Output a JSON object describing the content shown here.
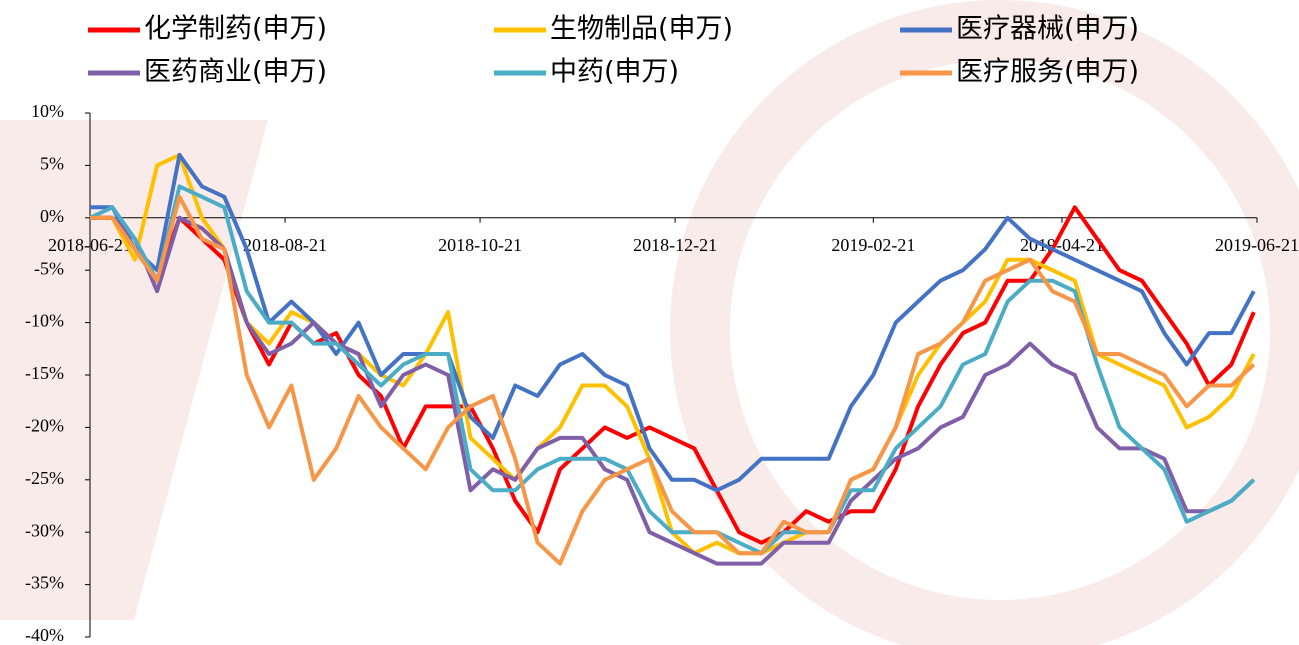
{
  "chart_data": {
    "type": "line",
    "x": [
      "2018-06-21",
      "2018-06-28",
      "2018-07-05",
      "2018-07-12",
      "2018-07-19",
      "2018-07-26",
      "2018-08-02",
      "2018-08-09",
      "2018-08-16",
      "2018-08-23",
      "2018-08-30",
      "2018-09-06",
      "2018-09-13",
      "2018-09-20",
      "2018-09-27",
      "2018-10-04",
      "2018-10-11",
      "2018-10-18",
      "2018-10-25",
      "2018-11-01",
      "2018-11-08",
      "2018-11-15",
      "2018-11-22",
      "2018-11-29",
      "2018-12-06",
      "2018-12-13",
      "2018-12-20",
      "2018-12-27",
      "2019-01-03",
      "2019-01-10",
      "2019-01-17",
      "2019-01-24",
      "2019-01-31",
      "2019-02-07",
      "2019-02-14",
      "2019-02-21",
      "2019-02-28",
      "2019-03-07",
      "2019-03-14",
      "2019-03-21",
      "2019-03-28",
      "2019-04-04",
      "2019-04-11",
      "2019-04-18",
      "2019-04-25",
      "2019-05-02",
      "2019-05-09",
      "2019-05-16",
      "2019-05-23",
      "2019-05-30",
      "2019-06-06",
      "2019-06-13",
      "2019-06-20"
    ],
    "series": [
      {
        "name": "化学制药(申万)",
        "color": "#ff0000",
        "values": [
          0,
          0,
          -3,
          -6,
          0,
          -2,
          -4,
          -10,
          -14,
          -10,
          -12,
          -11,
          -15,
          -17,
          -22,
          -18,
          -18,
          -18,
          -22,
          -27,
          -30,
          -24,
          -22,
          -20,
          -21,
          -20,
          -21,
          -22,
          -26,
          -30,
          -31,
          -30,
          -28,
          -29,
          -28,
          -28,
          -24,
          -18,
          -14,
          -11,
          -10,
          -6,
          -6,
          -3,
          1,
          -2,
          -5,
          -6,
          -9,
          -12,
          -16,
          -14,
          -9
        ]
      },
      {
        "name": "生物制品(申万)",
        "color": "#ffc000",
        "values": [
          0,
          0,
          -4,
          5,
          6,
          0,
          -3,
          -10,
          -12,
          -9,
          -10,
          -12,
          -13,
          -15,
          -16,
          -13,
          -9,
          -21,
          -23,
          -25,
          -22,
          -20,
          -16,
          -16,
          -18,
          -23,
          -30,
          -32,
          -31,
          -32,
          -32,
          -31,
          -30,
          -30,
          -25,
          -24,
          -20,
          -15,
          -12,
          -10,
          -8,
          -4,
          -4,
          -5,
          -6,
          -13,
          -14,
          -15,
          -16,
          -20,
          -19,
          -17,
          -13
        ]
      },
      {
        "name": "医疗器械(申万)",
        "color": "#4472c4",
        "values": [
          1,
          1,
          -3,
          -5,
          6,
          3,
          2,
          -3,
          -10,
          -8,
          -10,
          -13,
          -10,
          -15,
          -13,
          -13,
          -13,
          -19,
          -21,
          -16,
          -17,
          -14,
          -13,
          -15,
          -16,
          -22,
          -25,
          -25,
          -26,
          -25,
          -23,
          -23,
          -23,
          -23,
          -18,
          -15,
          -10,
          -8,
          -6,
          -5,
          -3,
          0,
          -2,
          -3,
          -4,
          -5,
          -6,
          -7,
          -11,
          -14,
          -11,
          -11,
          -7
        ]
      },
      {
        "name": "医药商业(申万)",
        "color": "#7f5fa8",
        "values": [
          0,
          0,
          -2,
          -7,
          0,
          -1,
          -3,
          -10,
          -13,
          -12,
          -10,
          -12,
          -13,
          -18,
          -15,
          -14,
          -15,
          -26,
          -24,
          -25,
          -22,
          -21,
          -21,
          -24,
          -25,
          -30,
          -31,
          -32,
          -33,
          -33,
          -33,
          -31,
          -31,
          -31,
          -27,
          -25,
          -23,
          -22,
          -20,
          -19,
          -15,
          -14,
          -12,
          -14,
          -15,
          -20,
          -22,
          -22,
          -23,
          -28,
          -28,
          -27,
          -25
        ]
      },
      {
        "name": "中药(申万)",
        "color": "#4bacc6",
        "values": [
          0,
          1,
          -2,
          -6,
          3,
          2,
          1,
          -7,
          -10,
          -10,
          -12,
          -12,
          -14,
          -16,
          -14,
          -13,
          -13,
          -24,
          -26,
          -26,
          -24,
          -23,
          -23,
          -23,
          -24,
          -28,
          -30,
          -30,
          -30,
          -31,
          -32,
          -30,
          -30,
          -30,
          -26,
          -26,
          -22,
          -20,
          -18,
          -14,
          -13,
          -8,
          -6,
          -6,
          -7,
          -14,
          -20,
          -22,
          -24,
          -29,
          -28,
          -27,
          -25
        ]
      },
      {
        "name": "医疗服务(申万)",
        "color": "#f79646",
        "values": [
          0,
          0,
          -3,
          -6,
          2,
          -2,
          -3,
          -15,
          -20,
          -16,
          -25,
          -22,
          -17,
          -20,
          -22,
          -24,
          -20,
          -18,
          -17,
          -23,
          -31,
          -33,
          -28,
          -25,
          -24,
          -23,
          -28,
          -30,
          -30,
          -32,
          -32,
          -29,
          -30,
          -30,
          -25,
          -24,
          -20,
          -13,
          -12,
          -10,
          -6,
          -5,
          -4,
          -7,
          -8,
          -13,
          -13,
          -14,
          -15,
          -18,
          -16,
          -16,
          -14
        ]
      }
    ],
    "xlim": [
      "2018-06-21",
      "2019-06-21"
    ],
    "xticks": [
      "2018-06-21",
      "2018-08-21",
      "2018-10-21",
      "2018-12-21",
      "2019-02-21",
      "2019-04-21",
      "2019-06-21"
    ],
    "ylim": [
      -40,
      10
    ],
    "yticks": [
      {
        "value": 10,
        "label": "10%"
      },
      {
        "value": 5,
        "label": "5%"
      },
      {
        "value": 0,
        "label": "0%"
      },
      {
        "value": -5,
        "label": "-5%"
      },
      {
        "value": -10,
        "label": "-10%"
      },
      {
        "value": -15,
        "label": "-15%"
      },
      {
        "value": -20,
        "label": "-20%"
      },
      {
        "value": -25,
        "label": "-25%"
      },
      {
        "value": -30,
        "label": "-30%"
      },
      {
        "value": -35,
        "label": "-35%"
      },
      {
        "value": -40,
        "label": "-40%"
      }
    ],
    "legend": "top"
  }
}
